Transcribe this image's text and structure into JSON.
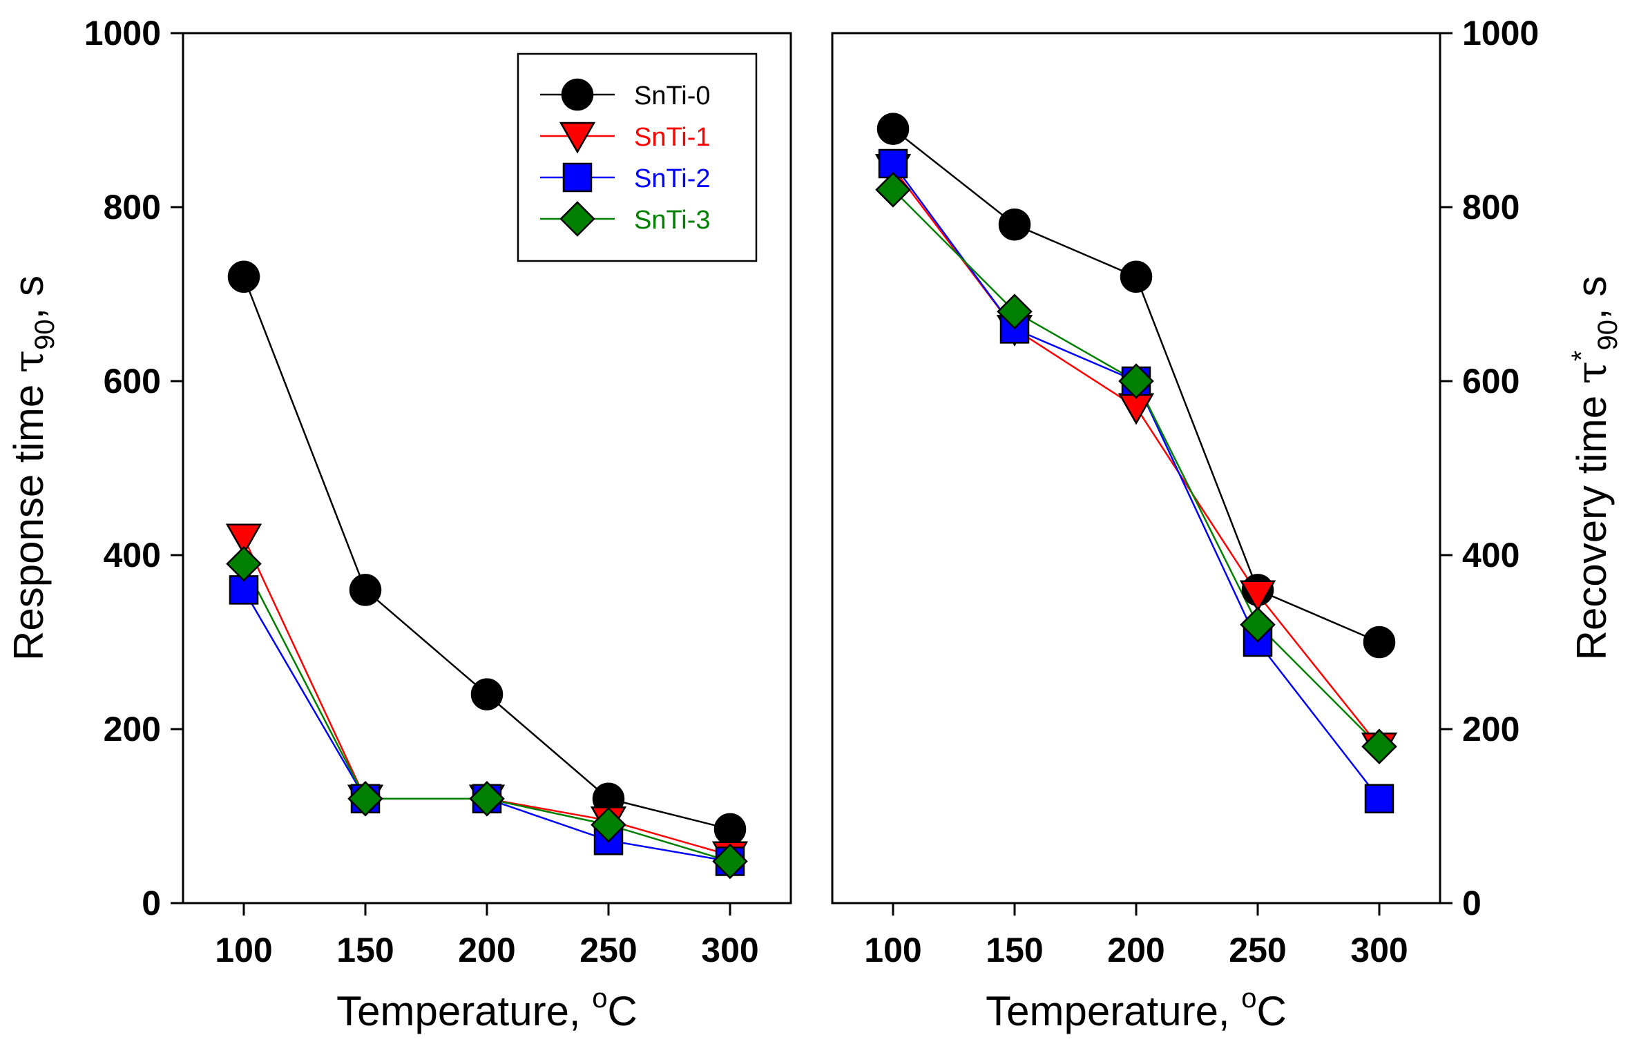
{
  "chart_data": [
    {
      "type": "line",
      "xlabel": "Temperature, ",
      "xlabel_sup": "o",
      "xlabel_unit": "C",
      "ylabel": "Response time ",
      "ylabel_symbol": "τ",
      "ylabel_sub": "90",
      "ylabel_unit": ", s",
      "y_axis_side": "left",
      "x": [
        100,
        150,
        200,
        250,
        300
      ],
      "x_ticks": [
        "100",
        "150",
        "200",
        "250",
        "300"
      ],
      "y_ticks": [
        "0",
        "200",
        "400",
        "600",
        "800",
        "1000"
      ],
      "xlim": [
        75,
        325
      ],
      "ylim": [
        0,
        1000
      ],
      "grid": false,
      "legend": "top-right",
      "series": [
        {
          "name": "SnTi-0",
          "color": "#000000",
          "marker": "circle",
          "values": [
            720,
            360,
            240,
            120,
            85
          ]
        },
        {
          "name": "SnTi-1",
          "color": "#ff0000",
          "marker": "triangle-down",
          "values": [
            420,
            120,
            120,
            95,
            55
          ]
        },
        {
          "name": "SnTi-2",
          "color": "#0000ff",
          "marker": "square",
          "values": [
            360,
            120,
            120,
            72,
            48
          ]
        },
        {
          "name": "SnTi-3",
          "color": "#008000",
          "marker": "diamond",
          "values": [
            390,
            120,
            120,
            90,
            48
          ]
        }
      ]
    },
    {
      "type": "line",
      "xlabel": "Temperature, ",
      "xlabel_sup": "o",
      "xlabel_unit": "C",
      "ylabel": "Recovery time ",
      "ylabel_symbol": "τ",
      "ylabel_sup": "*",
      "ylabel_sub": "90",
      "ylabel_unit": ", s",
      "y_axis_side": "right",
      "x": [
        100,
        150,
        200,
        250,
        300
      ],
      "x_ticks": [
        "100",
        "150",
        "200",
        "250",
        "300"
      ],
      "y_ticks": [
        "0",
        "200",
        "400",
        "600",
        "800",
        "1000"
      ],
      "xlim": [
        75,
        325
      ],
      "ylim": [
        0,
        1000
      ],
      "grid": false,
      "series": [
        {
          "name": "SnTi-0",
          "color": "#000000",
          "marker": "circle",
          "values": [
            890,
            780,
            720,
            360,
            300
          ]
        },
        {
          "name": "SnTi-1",
          "color": "#ff0000",
          "marker": "triangle-down",
          "values": [
            845,
            660,
            570,
            355,
            180
          ]
        },
        {
          "name": "SnTi-2",
          "color": "#0000ff",
          "marker": "square",
          "values": [
            850,
            660,
            600,
            300,
            120
          ]
        },
        {
          "name": "SnTi-3",
          "color": "#008000",
          "marker": "diamond",
          "values": [
            820,
            680,
            600,
            320,
            180
          ]
        }
      ]
    }
  ]
}
